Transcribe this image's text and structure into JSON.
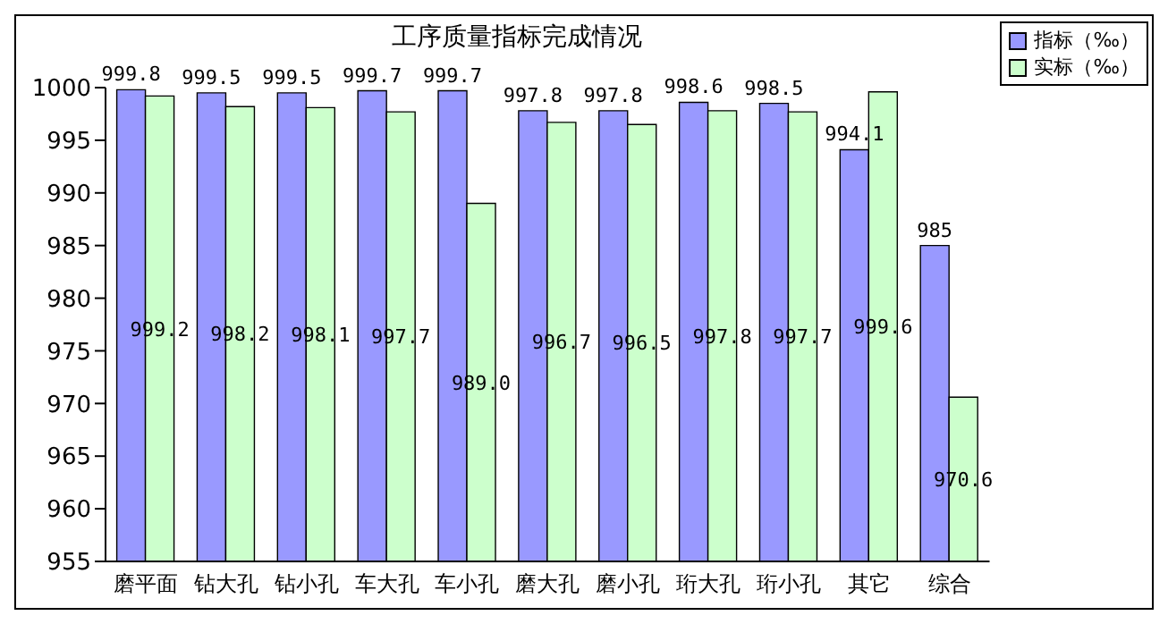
{
  "chart_data": {
    "type": "bar",
    "title": "工序质量指标完成情况",
    "categories": [
      "磨平面",
      "钻大孔",
      "钻小孔",
      "车大孔",
      "车小孔",
      "磨大孔",
      "磨小孔",
      "珩大孔",
      "珩小孔",
      "其它",
      "综合"
    ],
    "series": [
      {
        "name": "指标（‰）",
        "color": "#9999ff",
        "values": [
          999.8,
          999.5,
          999.5,
          999.7,
          999.7,
          997.8,
          997.8,
          998.6,
          998.5,
          994.1,
          985
        ],
        "value_labels": [
          "999.8",
          "999.5",
          "999.5",
          "999.7",
          "999.7",
          "997.8",
          "997.8",
          "998.6",
          "998.5",
          "994.1",
          "985"
        ]
      },
      {
        "name": "实标（‰）",
        "color": "#ccffcc",
        "values": [
          999.2,
          998.2,
          998.1,
          997.7,
          989.0,
          996.7,
          996.5,
          997.8,
          997.7,
          999.6,
          970.6
        ],
        "value_labels": [
          "999.2",
          "998.2",
          "998.1",
          "997.7",
          "989.0",
          "996.7",
          "996.5",
          "997.8",
          "997.7",
          "999.6",
          "970.6"
        ]
      }
    ],
    "ylim": [
      955,
      1000
    ],
    "yticks": [
      955,
      960,
      965,
      970,
      975,
      980,
      985,
      990,
      995,
      1000
    ],
    "grid": false,
    "legend": "top right"
  }
}
